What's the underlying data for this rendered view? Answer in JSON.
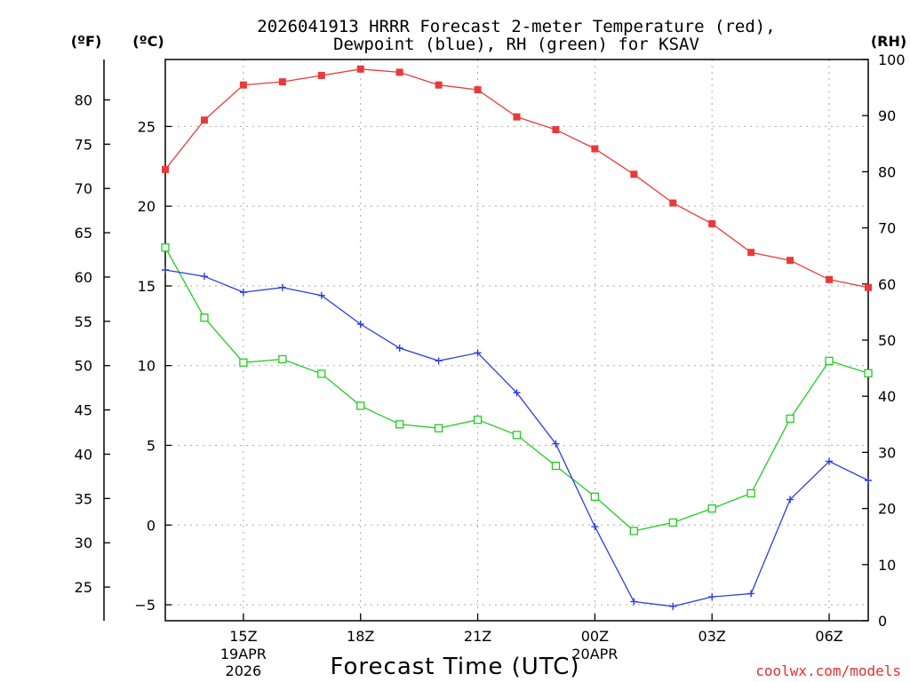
{
  "header": {
    "title_line1": "2026041913 HRRR Forecast 2-meter Temperature (red),",
    "title_line2": "Dewpoint (blue), RH (green) for KSAV",
    "unit_f": "(ºF)",
    "unit_c": "(ºC)",
    "unit_rh": "(RH)"
  },
  "footer": {
    "xlabel": "Forecast Time (UTC)",
    "credit": "coolwx.com/models"
  },
  "colors": {
    "temperature": "#e83a3a",
    "dewpoint": "#2b3fe0",
    "rh": "#22cc22",
    "grid": "#aaaaaa",
    "credit": "#e03030"
  },
  "chart_data": {
    "type": "line",
    "title": "2026041913 HRRR Forecast 2-meter Temperature (red), Dewpoint (blue), RH (green) for KSAV",
    "xlabel": "Forecast Time (UTC)",
    "x_hours": [
      13,
      14,
      15,
      16,
      17,
      18,
      19,
      20,
      21,
      22,
      23,
      24,
      25,
      26,
      27,
      28,
      29,
      30,
      31
    ],
    "x_range": [
      13,
      31
    ],
    "x_ticks": [
      {
        "hour": 15,
        "label": "15Z",
        "sublabel1": "19APR",
        "sublabel2": "2026"
      },
      {
        "hour": 18,
        "label": "18Z",
        "sublabel1": "",
        "sublabel2": ""
      },
      {
        "hour": 21,
        "label": "21Z",
        "sublabel1": "",
        "sublabel2": ""
      },
      {
        "hour": 24,
        "label": "00Z",
        "sublabel1": "20APR",
        "sublabel2": ""
      },
      {
        "hour": 27,
        "label": "03Z",
        "sublabel1": "",
        "sublabel2": ""
      },
      {
        "hour": 30,
        "label": "06Z",
        "sublabel1": "",
        "sublabel2": ""
      }
    ],
    "y_left_c": {
      "range": [
        -6.0,
        29.2
      ],
      "ticks": [
        -5,
        0,
        5,
        10,
        15,
        20,
        25
      ]
    },
    "y_left_f": {
      "ticks": [
        25,
        30,
        35,
        40,
        45,
        50,
        55,
        60,
        65,
        70,
        75,
        80
      ]
    },
    "y_right_rh": {
      "range": [
        0,
        100
      ],
      "ticks": [
        0,
        10,
        20,
        30,
        40,
        50,
        60,
        70,
        80,
        90,
        100
      ]
    },
    "series": [
      {
        "name": "Temperature",
        "unit": "C",
        "marker": "square-filled",
        "values": [
          22.3,
          25.4,
          27.6,
          27.8,
          28.2,
          28.6,
          28.4,
          27.6,
          27.3,
          25.6,
          24.8,
          23.6,
          22.0,
          20.2,
          18.9,
          17.1,
          16.6,
          15.4,
          14.9
        ]
      },
      {
        "name": "Dewpoint",
        "unit": "C",
        "marker": "plus",
        "values": [
          16.0,
          15.6,
          14.6,
          14.9,
          14.4,
          12.6,
          11.1,
          10.3,
          10.8,
          8.3,
          5.1,
          -0.1,
          -4.8,
          -5.1,
          -4.5,
          -4.3,
          1.6,
          4.0,
          2.8
        ]
      },
      {
        "name": "Relative Humidity",
        "unit": "%",
        "marker": "square-open",
        "values": [
          66.5,
          54.0,
          46.0,
          46.6,
          44.0,
          38.3,
          35.0,
          34.3,
          35.8,
          33.1,
          27.6,
          22.1,
          16.0,
          17.5,
          20.0,
          22.7,
          36.0,
          46.3,
          44.1
        ]
      }
    ],
    "grid": true
  }
}
